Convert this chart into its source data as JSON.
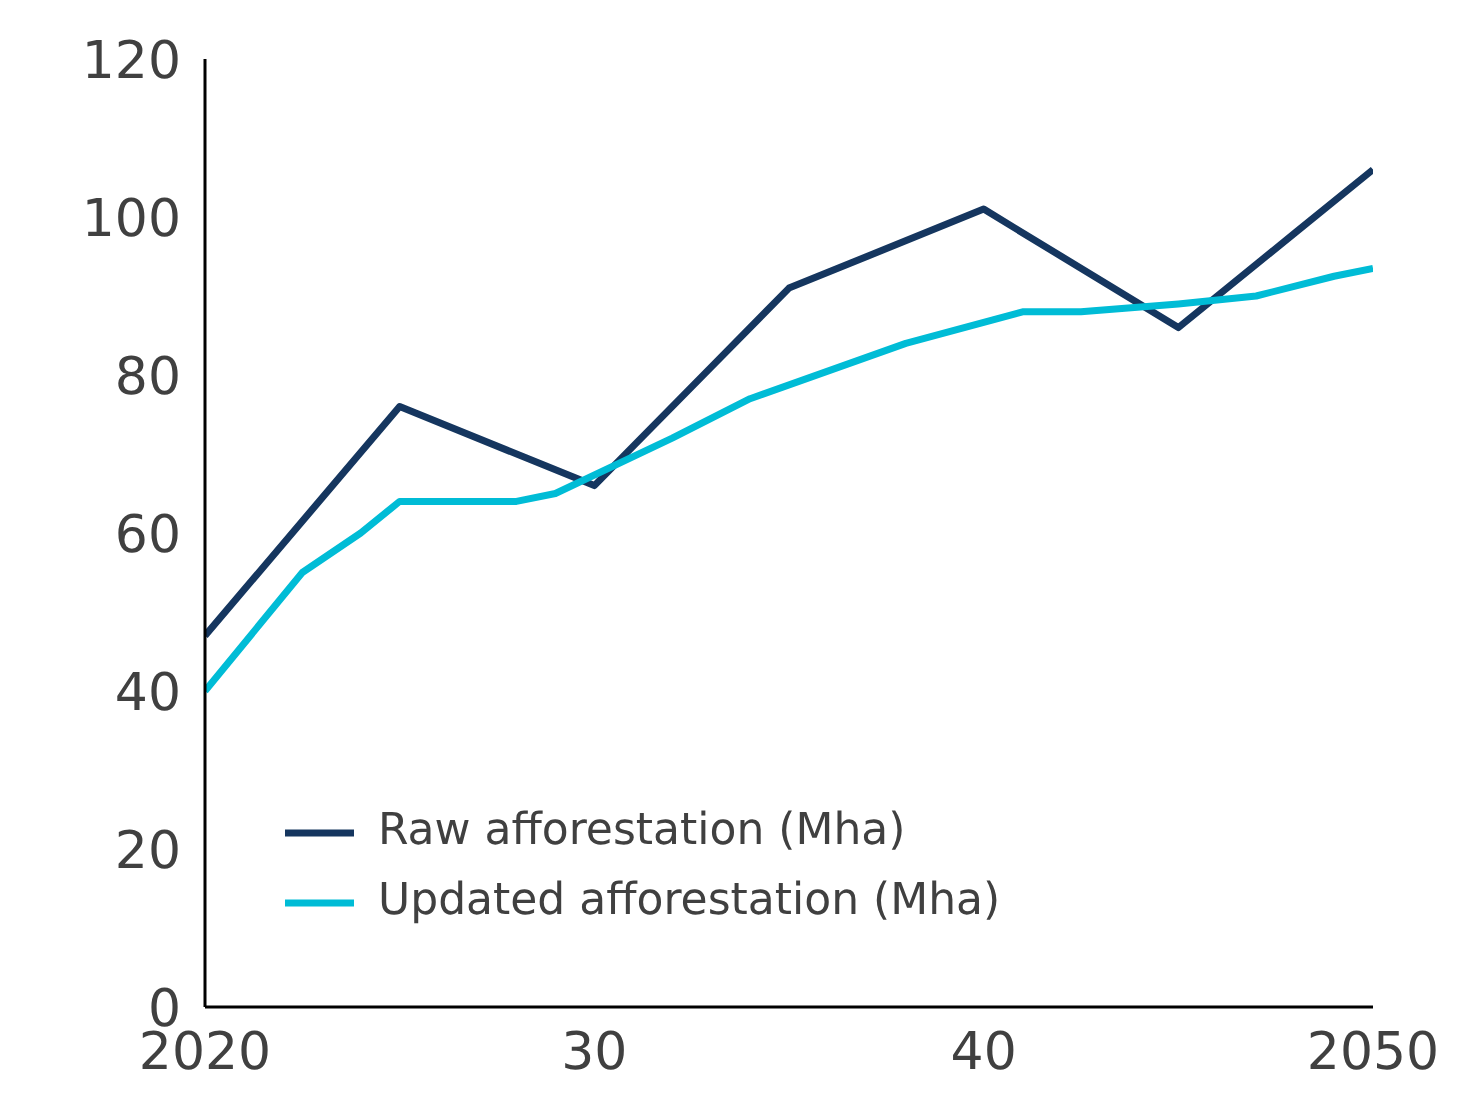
{
  "chart_data": {
    "type": "line",
    "xlim": [
      2020,
      2050
    ],
    "ylim": [
      0,
      120
    ],
    "xticks": [
      2020,
      {
        "value": 2030,
        "label": "30"
      },
      {
        "value": 2040,
        "label": "40"
      },
      2050
    ],
    "yticks": [
      0,
      20,
      40,
      60,
      80,
      100,
      120
    ],
    "grid": false,
    "legend": "bottom left",
    "marker": "none",
    "line_style": "solid",
    "series": [
      {
        "name": "Raw afforestation (Mha)",
        "color": "#15365f",
        "x": [
          2020,
          2025,
          2030,
          2033,
          2035,
          2037,
          2040,
          2042,
          2045,
          2048,
          2050
        ],
        "values": [
          47,
          76,
          66,
          81,
          91,
          95,
          101,
          95,
          86,
          98,
          106
        ]
      },
      {
        "name": "Updated afforestation (Mha)",
        "color": "#00bcd6",
        "x": [
          2020,
          2022.5,
          2024,
          2025,
          2028,
          2029,
          2032,
          2034,
          2038,
          2041,
          2042.5,
          2045,
          2047,
          2049,
          2050
        ],
        "values": [
          40,
          55,
          60,
          64,
          64,
          65,
          72,
          77,
          84,
          88,
          88,
          89,
          90,
          92.5,
          93.5
        ]
      }
    ]
  }
}
